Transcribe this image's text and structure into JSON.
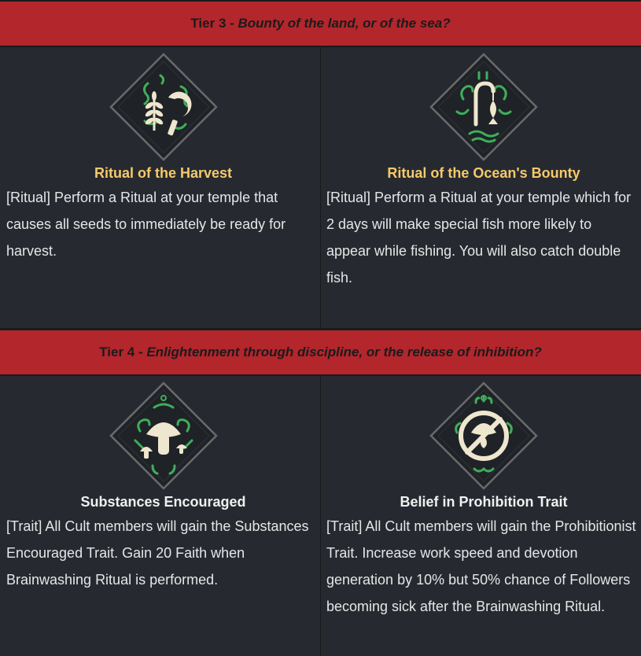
{
  "tiers": [
    {
      "label": "Tier 3 - ",
      "subtitle": "Bounty of the land, or of the sea?",
      "options": [
        {
          "name": "Ritual of the Harvest",
          "icon": "harvest-sickle-icon",
          "description": "[Ritual] Perform a Ritual at your temple that causes all seeds to immediately be ready for harvest."
        },
        {
          "name": "Ritual of the Ocean's Bounty",
          "icon": "fishing-rod-icon",
          "description": "[Ritual] Perform a Ritual at your temple which for 2 days will make special fish more likely to appear while fishing. You will also catch double fish."
        }
      ]
    },
    {
      "label": "Tier 4 - ",
      "subtitle": "Enlightenment through discipline, or the release of inhibition?",
      "options": [
        {
          "name": "Substances Encouraged",
          "icon": "mushroom-icon",
          "description": "[Trait] All Cult members will gain the Substances Encouraged Trait. Gain 20 Faith when Brainwashing Ritual is performed."
        },
        {
          "name": "Belief in Prohibition Trait",
          "icon": "prohibited-mushroom-icon",
          "description": "[Trait] All Cult members will gain the Prohibitionist Trait. Increase work speed and devotion generation by 10% but 50% chance of Followers becoming sick after the Brainwashing Ritual."
        }
      ]
    }
  ],
  "colors": {
    "header_bg": "#b3262c",
    "panel_bg": "#262a30",
    "gold_title": "#f6c96a",
    "icon_green": "#3fae5a",
    "icon_cream": "#efe6cf"
  }
}
